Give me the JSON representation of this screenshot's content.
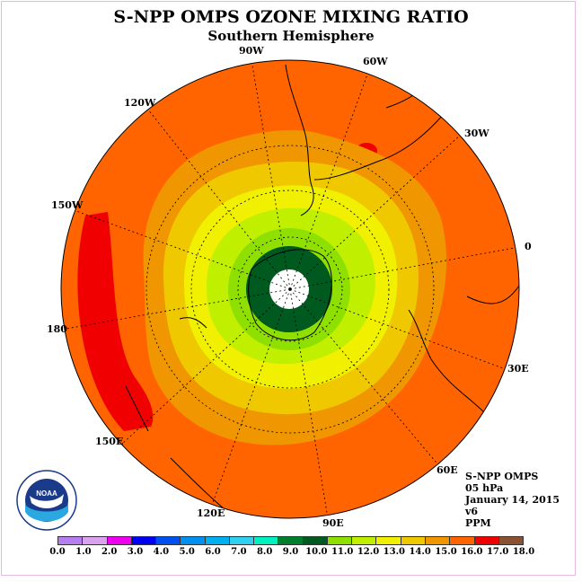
{
  "title": "S-NPP OMPS OZONE MIXING RATIO",
  "subtitle": "Southern Hemisphere",
  "lon_labels": {
    "90W": "90W",
    "60W": "60W",
    "120W": "120W",
    "30W": "30W",
    "150W": "150W",
    "0": "0",
    "180": "180",
    "30E": "30E",
    "150E": "150E",
    "60E": "60E",
    "120E": "120E",
    "90E": "90E"
  },
  "info": {
    "instrument": "S-NPP OMPS",
    "level": "05 hPa",
    "date": "January 14, 2015",
    "version": "v6",
    "units": "PPM"
  },
  "logo": {
    "name": "NOAA",
    "icon": "noaa-logo-icon"
  },
  "colorbar": {
    "labels": [
      "0.0",
      "1.0",
      "2.0",
      "3.0",
      "4.0",
      "5.0",
      "6.0",
      "7.0",
      "8.0",
      "9.0",
      "10.0",
      "11.0",
      "12.0",
      "13.0",
      "14.0",
      "15.0",
      "16.0",
      "17.0",
      "18.0"
    ],
    "colors": [
      "#b57ff0",
      "#d9a3f0",
      "#f000f0",
      "#0000f0",
      "#0050f0",
      "#0090f0",
      "#00b0f0",
      "#30d0f0",
      "#00f0c0",
      "#007f2f",
      "#005a1f",
      "#8fe000",
      "#c0f000",
      "#f0f000",
      "#f0c800",
      "#f09600",
      "#ff6400",
      "#f00000",
      "#8c5032"
    ]
  },
  "field": {
    "levels": [
      {
        "value": 16.5,
        "color": "#ff6400"
      },
      {
        "value": 15.5,
        "color": "#f09600"
      },
      {
        "value": 14.5,
        "color": "#f0c800"
      },
      {
        "value": 13.5,
        "color": "#f0f000"
      },
      {
        "value": 12.5,
        "color": "#c0f000"
      },
      {
        "value": 11.5,
        "color": "#8fe000"
      },
      {
        "value": 10.5,
        "color": "#005a1f"
      }
    ],
    "high_color": "#f00000"
  }
}
